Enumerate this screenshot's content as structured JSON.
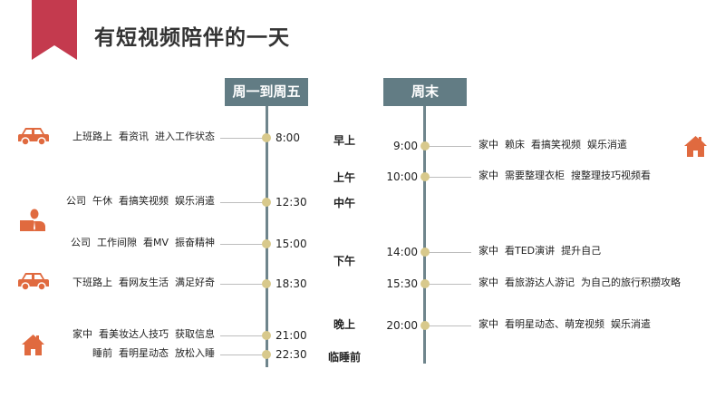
{
  "title": "有短视频陪伴的一天",
  "colors": {
    "ribbon": "#c43a4e",
    "header": "#627c84",
    "dot": "#d8c98c",
    "icon": "#e06a3f"
  },
  "weekday": {
    "header": "周一到周五",
    "items": [
      {
        "time": "8:00",
        "text": "上班路上  看资讯  进入工作状态",
        "icon": "car-icon"
      },
      {
        "time": "12:30",
        "text": "公司  午休  看搞笑视频  娱乐消遣",
        "icon": "office-worker-icon"
      },
      {
        "time": "15:00",
        "text": "公司  工作间隙  看MV  振奋精神"
      },
      {
        "time": "18:30",
        "text": "下班路上  看网友生活  满足好奇",
        "icon": "car-icon"
      },
      {
        "time": "21:00",
        "text": "家中  看美妆达人技巧  获取信息",
        "icon": "house-icon"
      },
      {
        "time": "22:30",
        "text": "睡前  看明星动态  放松入睡"
      }
    ]
  },
  "periods": [
    "早上",
    "上午",
    "中午",
    "下午",
    "晚上",
    "临睡前"
  ],
  "weekend": {
    "header": "周末",
    "items": [
      {
        "time": "9:00",
        "text": "家中  赖床  看搞笑视频  娱乐消遣",
        "icon": "house-icon"
      },
      {
        "time": "10:00",
        "text": "家中  需要整理衣柜  搜整理技巧视频看"
      },
      {
        "time": "14:00",
        "text": "家中  看TED演讲  提升自己"
      },
      {
        "time": "15:30",
        "text": "家中  看旅游达人游记  为自己的旅行积攒攻略"
      },
      {
        "time": "20:00",
        "text": "家中  看明星动态、萌宠视频  娱乐消遣"
      }
    ]
  }
}
